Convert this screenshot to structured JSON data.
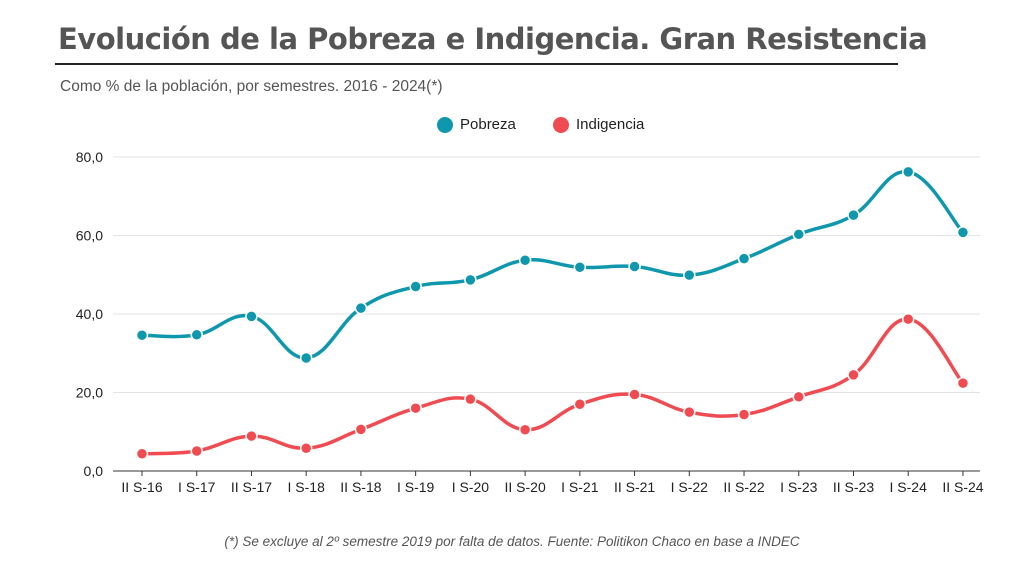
{
  "title": "Evolución de la Pobreza e Indigencia. Gran Resistencia",
  "subtitle": "Como % de la población, por semestres. 2016 - 2024(*)",
  "note": "(*) Se excluye al 2º semestre 2019 por falta de datos. Fuente: Politikon Chaco en base a INDEC",
  "colors": {
    "pobreza": "#0E97AD",
    "indigencia": "#EF4B51",
    "text": "#555555"
  },
  "chart_data": {
    "type": "line",
    "categories": [
      "II S-16",
      "I S-17",
      "II S-17",
      "I S-18",
      "II S-18",
      "I S-19",
      "I S-20",
      "II S-20",
      "I S-21",
      "II S-21",
      "I S-22",
      "II S-22",
      "I S-23",
      "II S-23",
      "I S-24",
      "II S-24"
    ],
    "series": [
      {
        "name": "Pobreza",
        "color": "#0E97AD",
        "values": [
          34.6,
          34.7,
          39.4,
          28.8,
          41.5,
          47.0,
          48.7,
          53.7,
          51.9,
          52.1,
          49.9,
          54.1,
          60.3,
          65.2,
          76.2,
          60.8
        ]
      },
      {
        "name": "Indigencia",
        "color": "#EF4B51",
        "values": [
          4.4,
          5.1,
          8.9,
          5.8,
          10.6,
          16.0,
          18.3,
          10.5,
          17.0,
          19.5,
          15.0,
          14.4,
          18.9,
          24.5,
          38.7,
          22.4
        ]
      }
    ],
    "yticks": [
      "0,0",
      "20,0",
      "40,0",
      "60,0",
      "80,0"
    ],
    "ylim": [
      0,
      80
    ],
    "grid": true,
    "legend_position": "top-center"
  }
}
